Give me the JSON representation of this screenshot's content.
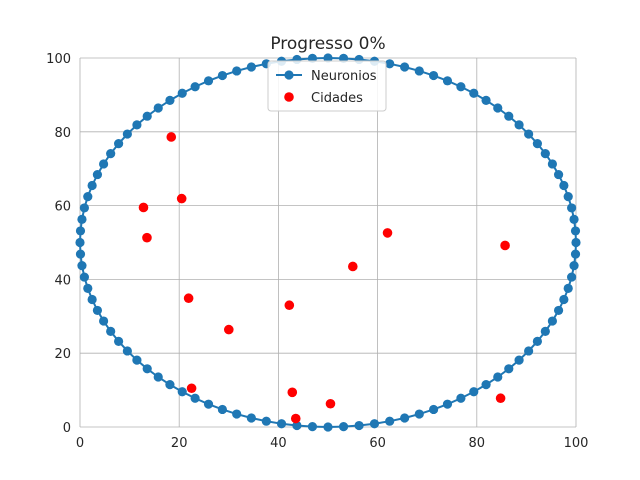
{
  "chart_data": {
    "type": "scatter",
    "title": "Progresso 0%",
    "xlabel": "",
    "ylabel": "",
    "xlim": [
      0,
      100
    ],
    "ylim": [
      0,
      100
    ],
    "xticks": [
      0,
      20,
      40,
      60,
      80,
      100
    ],
    "yticks": [
      0,
      20,
      40,
      60,
      80,
      100
    ],
    "grid": true,
    "legend_position": "top-center",
    "series": [
      {
        "name": "Neuronios",
        "kind": "line-with-markers",
        "color": "#1f77b4",
        "shape": "circle",
        "center": [
          50,
          50
        ],
        "radius": 50,
        "point_count": 100
      },
      {
        "name": "Cidades",
        "kind": "markers",
        "color": "#ff0000",
        "points": [
          [
            12.8,
            59.5
          ],
          [
            13.5,
            51.3
          ],
          [
            18.4,
            78.6
          ],
          [
            20.5,
            61.9
          ],
          [
            21.9,
            34.9
          ],
          [
            22.5,
            10.5
          ],
          [
            30.0,
            26.4
          ],
          [
            42.2,
            33.0
          ],
          [
            42.8,
            9.4
          ],
          [
            43.5,
            2.3
          ],
          [
            50.5,
            6.3
          ],
          [
            55.0,
            43.5
          ],
          [
            62.0,
            52.6
          ],
          [
            84.8,
            7.8
          ],
          [
            85.7,
            49.2
          ]
        ]
      }
    ]
  }
}
